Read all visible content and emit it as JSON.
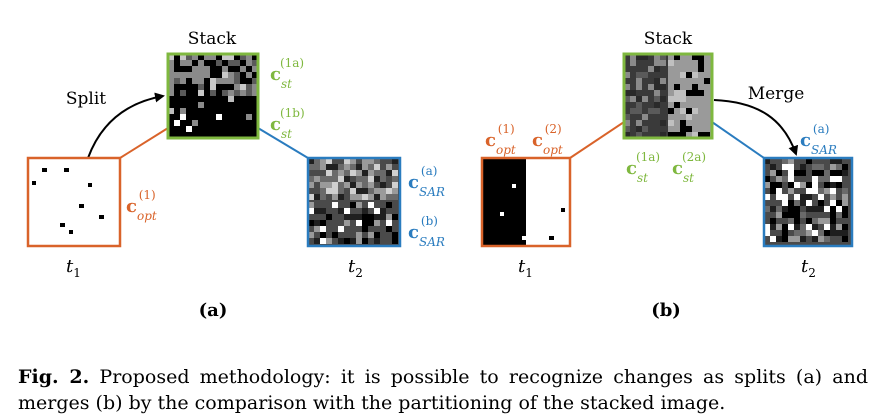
{
  "colors": {
    "optical": "#d9632a",
    "stack": "#7fb83f",
    "sar": "#2a7cbf",
    "text": "#000000"
  },
  "panel_a": {
    "stack_title": "Stack",
    "split_label": "Split",
    "c_opt": {
      "base": "c",
      "sup": "(1)",
      "sub": "opt"
    },
    "c_st_1a": {
      "base": "c",
      "sup": "(1a)",
      "sub": "st"
    },
    "c_st_1b": {
      "base": "c",
      "sup": "(1b)",
      "sub": "st"
    },
    "c_sar_a": {
      "base": "c",
      "sup": "(a)",
      "sub": "SAR"
    },
    "c_sar_b": {
      "base": "c",
      "sup": "(b)",
      "sub": "SAR"
    },
    "t1": {
      "base": "t",
      "sub": "1"
    },
    "t2": {
      "base": "t",
      "sub": "2"
    },
    "tag": "(a)"
  },
  "panel_b": {
    "stack_title": "Stack",
    "merge_label": "Merge",
    "c_opt_1": {
      "base": "c",
      "sup": "(1)",
      "sub": "opt"
    },
    "c_opt_2": {
      "base": "c",
      "sup": "(2)",
      "sub": "opt"
    },
    "c_st_1a": {
      "base": "c",
      "sup": "(1a)",
      "sub": "st"
    },
    "c_st_2a": {
      "base": "c",
      "sup": "(2a)",
      "sub": "st"
    },
    "c_sar_a": {
      "base": "c",
      "sup": "(a)",
      "sub": "SAR"
    },
    "t1": {
      "base": "t",
      "sub": "1"
    },
    "t2": {
      "base": "t",
      "sub": "2"
    },
    "tag": "(b)"
  },
  "caption": {
    "label": "Fig. 2.",
    "text": " Proposed methodology: it is possible to recognize changes as splits (a) and merges (b) by the comparison with the partitioning of the stacked image."
  }
}
